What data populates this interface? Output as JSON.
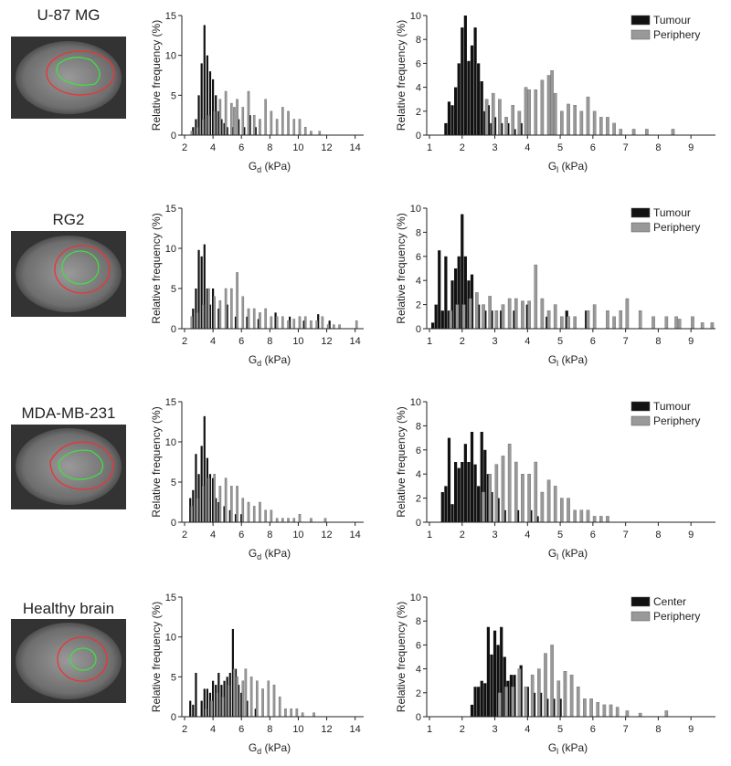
{
  "row_labels": [
    "U-87 MG",
    "RG2",
    "MDA-MB-231",
    "Healthy brain"
  ],
  "chart_data": [
    {
      "type": "bar",
      "ylabel": "Relative frequency (%)",
      "xlabel": [
        "G",
        "d",
        " (kPa)"
      ],
      "xlim": [
        2,
        14.6
      ],
      "ylim": [
        0,
        15
      ],
      "xticks": [
        2,
        4,
        6,
        8,
        10,
        12,
        14
      ],
      "yticks": [
        0,
        5,
        10,
        15
      ],
      "series": [
        {
          "color": "#111111",
          "x": [
            2.6,
            2.8,
            3.0,
            3.2,
            3.4,
            3.6,
            3.8,
            4.0,
            4.2,
            4.4,
            4.6,
            4.8,
            5.0,
            5.4,
            5.8,
            6.2,
            6.6,
            7.0
          ],
          "values": [
            1,
            2,
            5,
            9,
            13.8,
            10,
            8,
            7,
            5,
            3,
            2,
            1.5,
            1,
            1,
            2,
            1,
            2.5,
            1
          ]
        },
        {
          "color": "#999999",
          "x": [
            2.5,
            2.9,
            3.3,
            3.7,
            4.1,
            4.5,
            4.9,
            5.3,
            5.5,
            5.7,
            6.1,
            6.5,
            6.9,
            7.3,
            7.7,
            8.1,
            8.5,
            8.9,
            9.3,
            9.7,
            10.1,
            10.5,
            10.9,
            11.5
          ],
          "values": [
            0.5,
            1,
            2,
            2.5,
            3,
            4.5,
            5.5,
            4,
            3.5,
            4.5,
            3.5,
            5.5,
            2.5,
            2,
            4.5,
            3,
            2,
            3.5,
            3,
            2,
            2,
            1,
            0.5,
            0.5
          ]
        }
      ]
    },
    {
      "type": "bar",
      "ylabel": "Relative frequency (%)",
      "xlabel": [
        "G",
        "l",
        " (kPa)"
      ],
      "xlim": [
        1,
        9.75
      ],
      "ylim": [
        0,
        10
      ],
      "xticks": [
        1,
        2,
        3,
        4,
        5,
        6,
        7,
        8,
        9
      ],
      "yticks": [
        0,
        2,
        4,
        6,
        8,
        10
      ],
      "legend": "upper right",
      "series": [
        {
          "name": "Tumour",
          "color": "#111111",
          "x": [
            1.5,
            1.6,
            1.7,
            1.8,
            1.9,
            2.0,
            2.1,
            2.2,
            2.3,
            2.4,
            2.5,
            2.6,
            2.7,
            2.8,
            2.9,
            3.0,
            3.2,
            3.4,
            3.6,
            3.8
          ],
          "values": [
            1,
            2.8,
            2.5,
            4,
            6,
            9,
            10,
            6.2,
            7.5,
            9,
            6,
            4.5,
            2,
            2.5,
            1,
            1.5,
            1,
            1,
            0.5,
            1
          ]
        },
        {
          "name": "Periphery",
          "color": "#999999",
          "x": [
            2.75,
            2.95,
            3.15,
            3.35,
            3.55,
            3.75,
            3.95,
            4.05,
            4.25,
            4.45,
            4.65,
            4.75,
            4.85,
            5.05,
            5.25,
            5.45,
            5.65,
            5.85,
            6.05,
            6.25,
            6.45,
            6.65,
            6.85,
            7.25,
            7.65,
            8.45
          ],
          "values": [
            3,
            3.5,
            3,
            1.5,
            2.5,
            2,
            4,
            3.8,
            3.8,
            4.6,
            5,
            5.4,
            3.5,
            2,
            2.6,
            2.5,
            2,
            3.2,
            2,
            1.5,
            1.5,
            1,
            0.5,
            0.5,
            0.5,
            0.5
          ]
        }
      ]
    },
    {
      "type": "bar",
      "ylabel": "Relative frequency (%)",
      "xlabel": [
        "G",
        "d",
        " (kPa)"
      ],
      "xlim": [
        2,
        14.6
      ],
      "ylim": [
        0,
        15
      ],
      "xticks": [
        2,
        4,
        6,
        8,
        10,
        12,
        14
      ],
      "yticks": [
        0,
        5,
        10,
        15
      ],
      "series": [
        {
          "color": "#111111",
          "x": [
            2.6,
            2.8,
            3.0,
            3.2,
            3.4,
            3.6,
            3.8,
            4.0,
            4.4,
            5.0,
            5.6,
            6.4,
            7.2,
            8.4,
            9.4,
            10.4,
            11.4,
            12.2
          ],
          "values": [
            2.5,
            5,
            9.8,
            9,
            10.5,
            5,
            3,
            5,
            2.5,
            3,
            1.5,
            1.5,
            1.2,
            2,
            1.5,
            1,
            1.8,
            1
          ]
        },
        {
          "color": "#999999",
          "x": [
            2.5,
            2.9,
            3.3,
            3.7,
            4.1,
            4.5,
            4.9,
            5.3,
            5.7,
            6.1,
            6.5,
            6.9,
            7.3,
            7.7,
            8.1,
            8.5,
            8.9,
            9.3,
            9.7,
            10.1,
            10.5,
            10.9,
            11.3,
            11.7,
            12.1,
            12.5,
            12.9,
            14.1
          ],
          "values": [
            1.5,
            2,
            3,
            5,
            4,
            3.5,
            5,
            5,
            7,
            4,
            2.5,
            2.5,
            2,
            2.5,
            1.5,
            1.5,
            1.5,
            1,
            1.2,
            1.5,
            1.5,
            1,
            1,
            1.5,
            0.5,
            0.5,
            0.5,
            1
          ]
        }
      ]
    },
    {
      "type": "bar",
      "ylabel": "Relative frequency (%)",
      "xlabel": [
        "G",
        "l",
        " (kPa)"
      ],
      "xlim": [
        1,
        9.75
      ],
      "ylim": [
        0,
        10
      ],
      "xticks": [
        1,
        2,
        3,
        4,
        5,
        6,
        7,
        8,
        9
      ],
      "yticks": [
        0,
        2,
        4,
        6,
        8,
        10
      ],
      "legend": "upper right",
      "series": [
        {
          "name": "Tumour",
          "color": "#111111",
          "x": [
            1.1,
            1.2,
            1.3,
            1.4,
            1.5,
            1.6,
            1.7,
            1.8,
            1.9,
            2.0,
            2.1,
            2.2,
            2.3,
            2.5,
            2.7,
            2.9,
            3.2,
            3.6,
            4.0,
            4.6,
            5.2,
            5.8
          ],
          "values": [
            0.5,
            2,
            6.5,
            1.5,
            6,
            1.5,
            4,
            5,
            6,
            9.5,
            6,
            4,
            4.5,
            2,
            1.5,
            1.5,
            1.5,
            1.5,
            2,
            1,
            1.5,
            1.5
          ]
        },
        {
          "name": "Periphery",
          "color": "#999999",
          "x": [
            1.65,
            1.85,
            2.05,
            2.25,
            2.45,
            2.65,
            2.85,
            3.05,
            3.25,
            3.45,
            3.65,
            3.85,
            4.05,
            4.25,
            4.45,
            4.65,
            4.85,
            5.05,
            5.25,
            5.45,
            5.85,
            6.05,
            6.45,
            6.65,
            6.85,
            7.05,
            7.45,
            7.85,
            8.25,
            8.55,
            8.65,
            9.05,
            9.35,
            9.65
          ],
          "values": [
            1.5,
            2,
            2,
            2.5,
            3,
            2,
            2.7,
            1.5,
            2,
            2.5,
            2.5,
            2.3,
            2.3,
            5.3,
            2.5,
            1.5,
            2,
            1,
            1,
            1,
            1.5,
            2,
            1.5,
            1,
            1.5,
            2.5,
            1.5,
            1,
            1,
            1,
            0.8,
            1,
            0.5,
            0.5
          ]
        }
      ]
    },
    {
      "type": "bar",
      "ylabel": "Relative frequency (%)",
      "xlabel": [
        "G",
        "d",
        " (kPa)"
      ],
      "xlim": [
        2,
        14.6
      ],
      "ylim": [
        0,
        15
      ],
      "xticks": [
        2,
        4,
        6,
        8,
        10,
        12,
        14
      ],
      "yticks": [
        0,
        5,
        10,
        15
      ],
      "series": [
        {
          "color": "#111111",
          "x": [
            2.4,
            2.6,
            2.8,
            3.0,
            3.2,
            3.4,
            3.6,
            3.8,
            4.0,
            4.2,
            4.4,
            4.8,
            5.2,
            5.6,
            6.0
          ],
          "values": [
            3,
            4,
            8.5,
            6,
            9.5,
            13.2,
            8,
            6,
            5.5,
            3,
            2.5,
            2,
            1.5,
            1,
            1
          ]
        },
        {
          "color": "#999999",
          "x": [
            2.5,
            2.9,
            3.3,
            3.7,
            4.1,
            4.5,
            4.9,
            5.3,
            5.7,
            6.1,
            6.5,
            6.9,
            7.3,
            7.7,
            8.1,
            8.5,
            8.9,
            9.3,
            9.7,
            10.1,
            10.9,
            11.9
          ],
          "values": [
            2,
            3,
            4.5,
            5.5,
            6,
            4.5,
            5.5,
            4.5,
            4.5,
            3,
            2.5,
            2,
            2.5,
            1.5,
            1.5,
            0.5,
            0.5,
            0.5,
            0.5,
            1,
            0.5,
            0.5
          ]
        }
      ]
    },
    {
      "type": "bar",
      "ylabel": "Relative frequency (%)",
      "xlabel": [
        "G",
        "l",
        " (kPa)"
      ],
      "xlim": [
        1,
        9.75
      ],
      "ylim": [
        0,
        10
      ],
      "xticks": [
        1,
        2,
        3,
        4,
        5,
        6,
        7,
        8,
        9
      ],
      "yticks": [
        0,
        2,
        4,
        6,
        8,
        10
      ],
      "legend": "upper right",
      "series": [
        {
          "name": "Tumour",
          "color": "#111111",
          "x": [
            1.4,
            1.5,
            1.6,
            1.7,
            1.8,
            1.9,
            2.0,
            2.1,
            2.2,
            2.3,
            2.4,
            2.5,
            2.6,
            2.7,
            2.8,
            2.9,
            3.1,
            3.3,
            3.7,
            4.1,
            4.3
          ],
          "values": [
            2.5,
            3,
            7,
            1.5,
            5,
            4.5,
            5,
            6.5,
            5,
            7.5,
            4.8,
            3,
            7.5,
            6,
            4,
            2.5,
            2,
            1,
            1,
            1,
            0.5
          ]
        },
        {
          "name": "Periphery",
          "color": "#999999",
          "x": [
            2.65,
            2.85,
            3.05,
            3.25,
            3.45,
            3.65,
            3.85,
            4.05,
            4.25,
            4.45,
            4.65,
            4.85,
            5.05,
            5.25,
            5.45,
            5.65,
            5.85,
            6.05,
            6.25,
            6.45
          ],
          "values": [
            2.5,
            4,
            4.8,
            5.5,
            6.5,
            5,
            4,
            4,
            5,
            2.5,
            3.5,
            3,
            2,
            2,
            1,
            1,
            1,
            0.5,
            0.5,
            0.5
          ]
        }
      ]
    },
    {
      "type": "bar",
      "ylabel": "Relative frequency (%)",
      "xlabel": [
        "G",
        "d",
        " (kPa)"
      ],
      "xlim": [
        2,
        14.6
      ],
      "ylim": [
        0,
        15
      ],
      "xticks": [
        2,
        4,
        6,
        8,
        10,
        12,
        14
      ],
      "yticks": [
        0,
        5,
        10,
        15
      ],
      "series": [
        {
          "color": "#111111",
          "x": [
            2.4,
            2.6,
            2.8,
            3.2,
            3.4,
            3.6,
            3.8,
            4.0,
            4.2,
            4.4,
            4.6,
            4.8,
            5.0,
            5.2,
            5.4,
            5.6,
            5.8,
            6.0,
            6.4,
            7.0
          ],
          "values": [
            2,
            1.5,
            5.5,
            2,
            3.5,
            3.5,
            3,
            4.5,
            4,
            5.5,
            4,
            4.5,
            5,
            5.5,
            11,
            6,
            4,
            3,
            2,
            1
          ]
        },
        {
          "color": "#999999",
          "x": [
            3.5,
            3.9,
            4.3,
            4.7,
            5.1,
            5.5,
            5.7,
            6.1,
            6.3,
            6.7,
            7.1,
            7.5,
            7.9,
            8.3,
            8.7,
            9.1,
            9.5,
            9.9,
            10.3,
            11.1
          ],
          "values": [
            1,
            2,
            3,
            2.5,
            4,
            6,
            5,
            4.5,
            6,
            5,
            4.5,
            3.5,
            4.5,
            4,
            2.5,
            1,
            1,
            1,
            0.5,
            0.5
          ]
        }
      ]
    },
    {
      "type": "bar",
      "ylabel": "Relative frequency (%)",
      "xlabel": [
        "G",
        "l",
        " (kPa)"
      ],
      "xlim": [
        1,
        9.75
      ],
      "ylim": [
        0,
        10
      ],
      "xticks": [
        1,
        2,
        3,
        4,
        5,
        6,
        7,
        8,
        9
      ],
      "yticks": [
        0,
        2,
        4,
        6,
        8,
        10
      ],
      "legend": "upper right",
      "series": [
        {
          "name": "Center",
          "color": "#111111",
          "x": [
            2.3,
            2.4,
            2.5,
            2.6,
            2.7,
            2.8,
            2.9,
            3.0,
            3.1,
            3.2,
            3.3,
            3.4,
            3.5,
            3.6,
            3.8,
            4.0,
            4.2,
            4.4,
            4.6,
            4.8,
            5.0
          ],
          "values": [
            1,
            2.5,
            2.5,
            3,
            2.8,
            7.5,
            5.2,
            7.2,
            6,
            7.5,
            5,
            3,
            3.5,
            3.5,
            4.3,
            2.5,
            2,
            2,
            1.5,
            1.5,
            1.5
          ]
        },
        {
          "name": "Periphery",
          "color": "#999999",
          "x": [
            3.15,
            3.35,
            3.55,
            3.75,
            3.95,
            4.15,
            4.35,
            4.55,
            4.75,
            4.95,
            5.15,
            5.35,
            5.55,
            5.75,
            5.95,
            6.15,
            6.35,
            6.55,
            6.75,
            7.05,
            7.45,
            8.25
          ],
          "values": [
            2,
            2.5,
            2.5,
            4,
            2.5,
            3.5,
            4,
            5.3,
            6,
            3,
            3.8,
            3.5,
            2.5,
            1.5,
            1.5,
            1.2,
            1,
            1,
            0.8,
            0.5,
            0.3,
            0.5
          ]
        }
      ]
    }
  ]
}
